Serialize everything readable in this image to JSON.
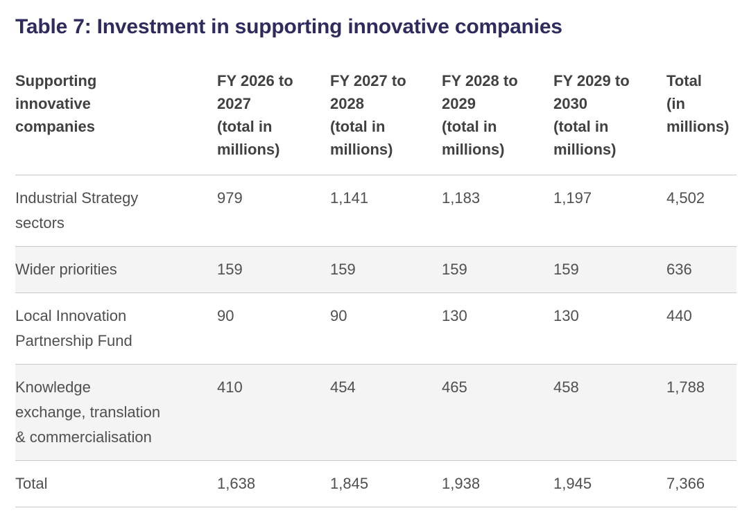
{
  "title": "Table 7: Investment in supporting innovative companies",
  "table": {
    "headers": [
      "Supporting\ninnovative\ncompanies",
      "FY 2026 to\n2027\n(total in\nmillions)",
      "FY 2027 to\n2028\n(total in\nmillions)",
      "FY 2028 to\n2029\n(total in\nmillions)",
      "FY 2029 to\n2030\n(total in\nmillions)",
      "Total (in\nmillions)"
    ],
    "rows": [
      {
        "label": "Industrial Strategy\nsectors",
        "cells": [
          "979",
          "1,141",
          "1,183",
          "1,197",
          "4,502"
        ]
      },
      {
        "label": "Wider priorities",
        "cells": [
          "159",
          "159",
          "159",
          "159",
          "636"
        ]
      },
      {
        "label": "Local Innovation\nPartnership Fund",
        "cells": [
          "90",
          "90",
          "130",
          "130",
          "440"
        ]
      },
      {
        "label": "Knowledge\nexchange, translation\n& commercialisation",
        "cells": [
          "410",
          "454",
          "465",
          "458",
          "1,788"
        ]
      },
      {
        "label": "Total",
        "cells": [
          "1,638",
          "1,845",
          "1,938",
          "1,945",
          "7,366"
        ]
      }
    ]
  },
  "chart_data": {
    "type": "table",
    "title": "Table 7: Investment in supporting innovative companies",
    "columns": [
      "Supporting innovative companies",
      "FY 2026 to 2027 (total in millions)",
      "FY 2027 to 2028 (total in millions)",
      "FY 2028 to 2029 (total in millions)",
      "FY 2029 to 2030 (total in millions)",
      "Total (in millions)"
    ],
    "rows": [
      {
        "label": "Industrial Strategy sectors",
        "values": [
          979,
          1141,
          1183,
          1197,
          4502
        ]
      },
      {
        "label": "Wider priorities",
        "values": [
          159,
          159,
          159,
          159,
          636
        ]
      },
      {
        "label": "Local Innovation Partnership Fund",
        "values": [
          90,
          90,
          130,
          130,
          440
        ]
      },
      {
        "label": "Knowledge exchange, translation & commercialisation",
        "values": [
          410,
          454,
          465,
          458,
          1788
        ]
      },
      {
        "label": "Total",
        "values": [
          1638,
          1845,
          1938,
          1945,
          7366
        ]
      }
    ],
    "layout": {
      "gridlines": "horizontal-only",
      "striped_row_indexes": [
        1,
        3
      ],
      "header_style": "bold-no-fill"
    }
  },
  "colors": {
    "title": "#2e2c5f",
    "header_text": "#414141",
    "body_text": "#4f4f4f",
    "row_stripe": "#f4f4f4",
    "border": "#c9c9c9",
    "background": "#ffffff"
  }
}
